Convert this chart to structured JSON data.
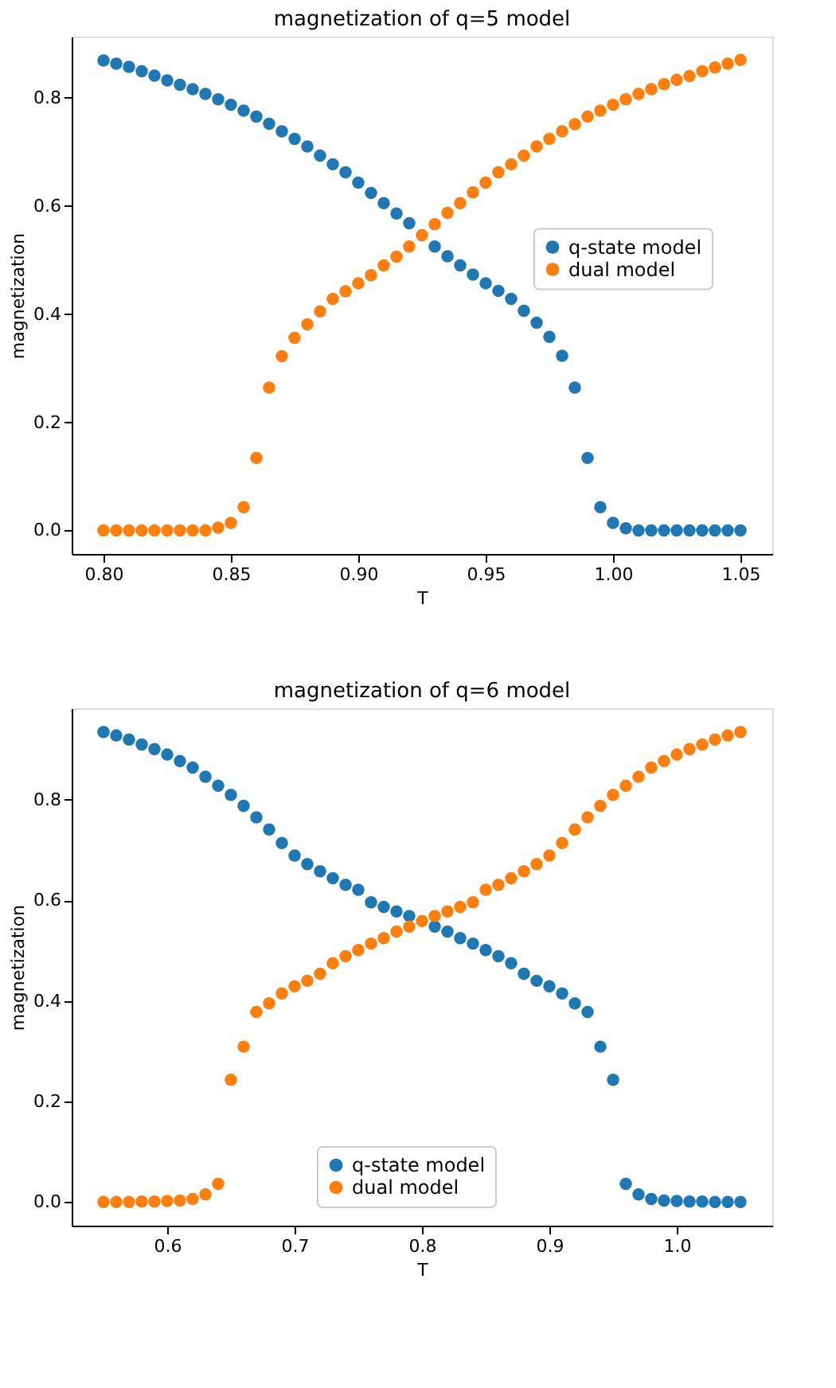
{
  "chart_data": [
    {
      "type": "scatter",
      "title": "magnetization of q=5 model",
      "xlabel": "T",
      "ylabel": "magnetization",
      "marker": "circle",
      "grid": false,
      "legend": "right",
      "x": [
        0.8,
        0.805,
        0.81,
        0.815,
        0.82,
        0.825,
        0.83,
        0.835,
        0.84,
        0.845,
        0.85,
        0.855,
        0.86,
        0.865,
        0.87,
        0.875,
        0.88,
        0.885,
        0.89,
        0.895,
        0.9,
        0.905,
        0.91,
        0.915,
        0.92,
        0.925,
        0.93,
        0.935,
        0.94,
        0.945,
        0.95,
        0.955,
        0.96,
        0.965,
        0.97,
        0.975,
        0.98,
        0.985,
        0.99,
        0.995,
        1.0,
        1.005,
        1.01,
        1.015,
        1.02,
        1.025,
        1.03,
        1.035,
        1.04,
        1.045,
        1.05
      ],
      "xlim": [
        0.7875,
        1.0625
      ],
      "ylim": [
        -0.0435,
        0.913
      ],
      "xticks": [
        {
          "value": 0.8,
          "label": "0.80"
        },
        {
          "value": 0.85,
          "label": "0.85"
        },
        {
          "value": 0.9,
          "label": "0.90"
        },
        {
          "value": 0.95,
          "label": "0.95"
        },
        {
          "value": 1.0,
          "label": "1.00"
        },
        {
          "value": 1.05,
          "label": "1.05"
        }
      ],
      "yticks": [
        {
          "value": 0,
          "label": "0.0"
        },
        {
          "value": 0.2,
          "label": "0.2"
        },
        {
          "value": 0.4,
          "label": "0.4"
        },
        {
          "value": 0.6,
          "label": "0.6"
        },
        {
          "value": 0.8,
          "label": "0.8"
        }
      ],
      "series": [
        {
          "name": "q-state model",
          "color": "#1f77b4",
          "values": [
            0.869,
            0.863,
            0.857,
            0.849,
            0.841,
            0.832,
            0.824,
            0.816,
            0.807,
            0.797,
            0.787,
            0.776,
            0.765,
            0.752,
            0.738,
            0.724,
            0.71,
            0.693,
            0.677,
            0.662,
            0.643,
            0.624,
            0.605,
            0.586,
            0.568,
            null,
            0.525,
            0.507,
            0.49,
            0.473,
            0.457,
            0.443,
            0.428,
            0.406,
            0.384,
            0.358,
            0.323,
            0.264,
            0.134,
            0.043,
            0.014,
            0.004,
            0,
            0,
            0,
            0,
            0,
            0,
            0,
            0,
            0
          ]
        },
        {
          "name": "dual model",
          "color": "#ff7f0e",
          "values": [
            0,
            0,
            0,
            0,
            0,
            0,
            0,
            0,
            0,
            0.005,
            0.014,
            0.043,
            0.134,
            0.264,
            0.322,
            0.356,
            0.381,
            0.405,
            0.428,
            0.442,
            0.457,
            0.472,
            0.49,
            0.506,
            0.525,
            0.546,
            0.566,
            0.587,
            0.605,
            0.625,
            0.643,
            0.662,
            0.677,
            0.693,
            0.71,
            0.724,
            0.738,
            0.751,
            0.765,
            0.776,
            0.787,
            0.797,
            0.807,
            0.816,
            0.825,
            0.833,
            0.84,
            0.849,
            0.856,
            0.863,
            0.87
          ]
        }
      ]
    },
    {
      "type": "scatter",
      "title": "magnetization of q=6 model",
      "xlabel": "T",
      "ylabel": "magnetization",
      "marker": "circle",
      "grid": false,
      "legend": "bottom",
      "x": [
        0.55,
        0.56,
        0.57,
        0.58,
        0.59,
        0.6,
        0.61,
        0.62,
        0.63,
        0.64,
        0.65,
        0.66,
        0.67,
        0.68,
        0.69,
        0.7,
        0.71,
        0.72,
        0.73,
        0.74,
        0.75,
        0.76,
        0.77,
        0.78,
        0.79,
        0.8,
        0.81,
        0.82,
        0.83,
        0.84,
        0.85,
        0.86,
        0.87,
        0.88,
        0.89,
        0.9,
        0.91,
        0.92,
        0.93,
        0.94,
        0.95,
        0.96,
        0.97,
        0.98,
        0.99,
        1.0,
        1.01,
        1.02,
        1.03,
        1.04,
        1.05
      ],
      "xlim": [
        0.525,
        1.075
      ],
      "ylim": [
        -0.047,
        0.982
      ],
      "xticks": [
        {
          "value": 0.6,
          "label": "0.6"
        },
        {
          "value": 0.7,
          "label": "0.7"
        },
        {
          "value": 0.8,
          "label": "0.8"
        },
        {
          "value": 0.9,
          "label": "0.9"
        },
        {
          "value": 1.0,
          "label": "1.0"
        }
      ],
      "yticks": [
        {
          "value": 0,
          "label": "0.0"
        },
        {
          "value": 0.2,
          "label": "0.2"
        },
        {
          "value": 0.4,
          "label": "0.4"
        },
        {
          "value": 0.6,
          "label": "0.6"
        },
        {
          "value": 0.8,
          "label": "0.8"
        }
      ],
      "series": [
        {
          "name": "q-state model",
          "color": "#1f77b4",
          "values": [
            0.935,
            0.928,
            0.92,
            0.91,
            0.901,
            0.89,
            0.877,
            0.864,
            0.846,
            0.828,
            0.81,
            0.788,
            0.765,
            0.741,
            0.714,
            0.689,
            0.672,
            0.658,
            0.644,
            0.631,
            0.621,
            0.596,
            0.587,
            0.578,
            0.569,
            null,
            0.548,
            0.538,
            0.525,
            0.514,
            0.501,
            0.489,
            0.475,
            0.454,
            0.44,
            0.429,
            0.415,
            0.395,
            0.378,
            0.309,
            0.243,
            0.036,
            0.015,
            0.006,
            0.003,
            0.002,
            0.001,
            0.001,
            0,
            0,
            0
          ]
        },
        {
          "name": "dual model",
          "color": "#ff7f0e",
          "values": [
            0,
            0,
            0,
            0.001,
            0.001,
            0.002,
            0.003,
            0.006,
            0.015,
            0.036,
            0.243,
            0.309,
            0.378,
            0.395,
            0.415,
            0.429,
            0.44,
            0.454,
            0.475,
            0.489,
            0.501,
            0.514,
            0.525,
            0.538,
            0.548,
            0.559,
            0.569,
            0.578,
            0.587,
            0.596,
            0.621,
            0.631,
            0.644,
            0.658,
            0.672,
            0.689,
            0.714,
            0.741,
            0.765,
            0.788,
            0.81,
            0.828,
            0.846,
            0.864,
            0.877,
            0.89,
            0.901,
            0.91,
            0.92,
            0.928,
            0.935
          ]
        }
      ]
    }
  ]
}
